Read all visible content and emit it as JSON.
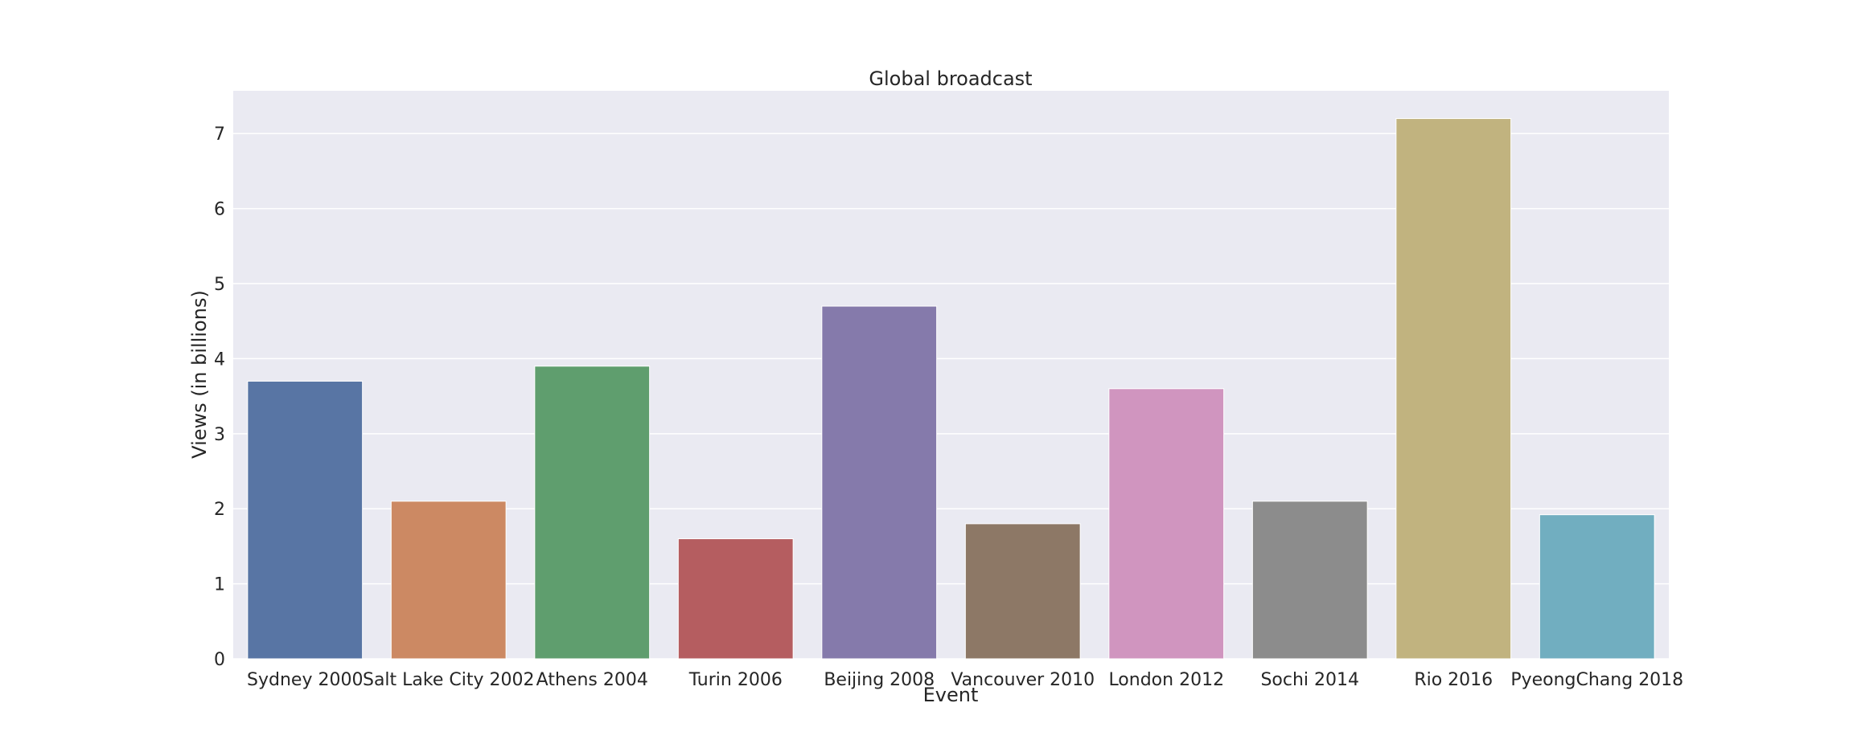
{
  "chart_data": {
    "type": "bar",
    "title": "Global broadcast",
    "xlabel": "Event",
    "ylabel": "Views (in billions)",
    "categories": [
      "Sydney 2000",
      "Salt Lake City 2002",
      "Athens 2004",
      "Turin 2006",
      "Beijing 2008",
      "Vancouver 2010",
      "London 2012",
      "Sochi 2014",
      "Rio 2016",
      "PyeongChang 2018"
    ],
    "values": [
      3.7,
      2.1,
      3.9,
      1.6,
      4.7,
      1.8,
      3.6,
      2.1,
      7.2,
      1.92
    ],
    "colors": [
      "#5875a4",
      "#cc8963",
      "#5f9e6e",
      "#b55d60",
      "#857aab",
      "#8d7866",
      "#d095bf",
      "#8c8c8c",
      "#c1b37f",
      "#71aec0"
    ],
    "ylim": [
      0,
      7.57
    ],
    "yticks": [
      0,
      1,
      2,
      3,
      4,
      5,
      6,
      7
    ],
    "grid": true,
    "background": "#eaeaf2"
  }
}
